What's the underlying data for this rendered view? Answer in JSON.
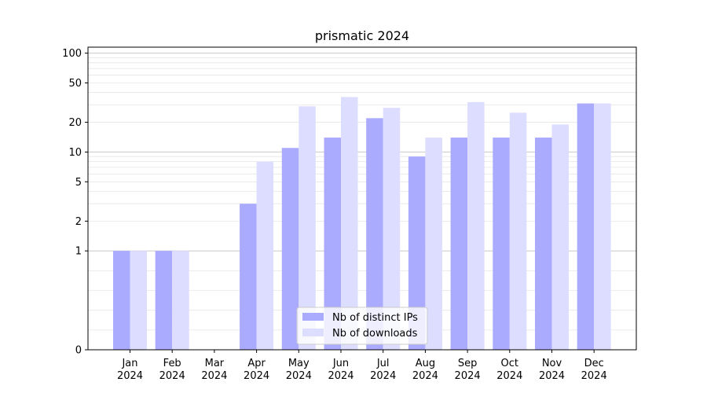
{
  "chart_data": {
    "type": "bar",
    "title": "prismatic 2024",
    "xlabel": "",
    "ylabel": "",
    "y_scale": "symlog",
    "ylim": [
      0,
      115
    ],
    "categories": [
      [
        "Jan",
        "2024"
      ],
      [
        "Feb",
        "2024"
      ],
      [
        "Mar",
        "2024"
      ],
      [
        "Apr",
        "2024"
      ],
      [
        "May",
        "2024"
      ],
      [
        "Jun",
        "2024"
      ],
      [
        "Jul",
        "2024"
      ],
      [
        "Aug",
        "2024"
      ],
      [
        "Sep",
        "2024"
      ],
      [
        "Oct",
        "2024"
      ],
      [
        "Nov",
        "2024"
      ],
      [
        "Dec",
        "2024"
      ]
    ],
    "y_ticks": [
      0,
      1,
      2,
      5,
      10,
      20,
      50,
      100
    ],
    "y_tick_labels": [
      "0",
      "1",
      "2",
      "5",
      "10",
      "20",
      "50",
      "100"
    ],
    "series": [
      {
        "name": "Nb of distinct IPs",
        "color": "#aaaaff",
        "values": [
          1,
          1,
          0,
          3,
          11,
          14,
          22,
          9,
          14,
          14,
          14,
          31
        ]
      },
      {
        "name": "Nb of downloads",
        "color": "#ddddff",
        "values": [
          1,
          1,
          0,
          8,
          29,
          36,
          28,
          14,
          32,
          25,
          19,
          31
        ]
      }
    ],
    "grid": true,
    "legend_position": "lower-center"
  }
}
